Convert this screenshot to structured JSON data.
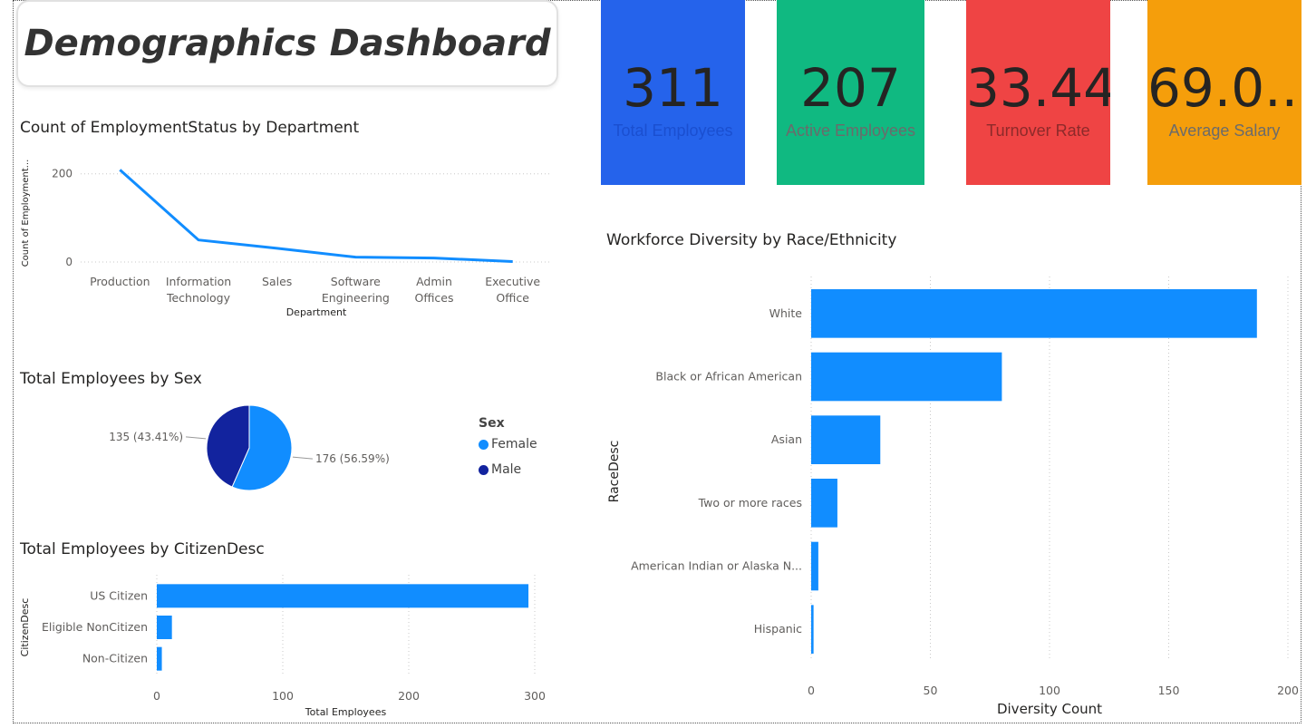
{
  "dashboard_title": "Demographics Dashboard",
  "kpis": [
    {
      "value": "311",
      "label": "Total Employees",
      "color": "#2563eb"
    },
    {
      "value": "207",
      "label": "Active Employees",
      "color": "#10b981"
    },
    {
      "value": "33.44",
      "label": "Turnover Rate",
      "color": "#ef4444"
    },
    {
      "value": "69.0...",
      "label": "Average Salary",
      "color": "#f59e0b"
    }
  ],
  "colors": {
    "series": "#118dff",
    "male": "#12239e",
    "grid": "#c8c8c8"
  },
  "chart_data": [
    {
      "type": "line",
      "title": "Count of EmploymentStatus by Department",
      "xlabel": "Department",
      "ylabel": "Count of Employment...",
      "categories": [
        "Production",
        "Information Technology",
        "Sales",
        "Software Engineering",
        "Admin Offices",
        "Executive Office"
      ],
      "category_lines": [
        [
          "Production"
        ],
        [
          "Information",
          "Technology"
        ],
        [
          "Sales"
        ],
        [
          "Software",
          "Engineering"
        ],
        [
          "Admin",
          "Offices"
        ],
        [
          "Executive",
          "Office"
        ]
      ],
      "values": [
        209,
        50,
        31,
        11,
        9,
        1
      ],
      "yticks": [
        0,
        200
      ],
      "ylim": [
        0,
        220
      ],
      "grid": true
    },
    {
      "type": "pie",
      "title": "Total Employees by Sex",
      "legend_title": "Sex",
      "legend_position": "right",
      "slices": [
        {
          "name": "Female",
          "value": 176,
          "label": "176 (56.59%)",
          "color": "#118dff"
        },
        {
          "name": "Male",
          "value": 135,
          "label": "135 (43.41%)",
          "color": "#12239e"
        }
      ]
    },
    {
      "type": "bar",
      "orientation": "horizontal",
      "title": "Total Employees by CitizenDesc",
      "xlabel": "Total Employees",
      "ylabel": "CitizenDesc",
      "categories": [
        "US Citizen",
        "Eligible NonCitizen",
        "Non-Citizen"
      ],
      "values": [
        295,
        12,
        4
      ],
      "xticks": [
        0,
        100,
        200,
        300
      ],
      "xlim": [
        0,
        300
      ],
      "grid": true
    },
    {
      "type": "bar",
      "orientation": "horizontal",
      "title": "Workforce Diversity by Race/Ethnicity",
      "xlabel": "Diversity Count",
      "ylabel": "RaceDesc",
      "categories": [
        "White",
        "Black or African American",
        "Asian",
        "Two or more races",
        "American Indian or Alaska N...",
        "Hispanic"
      ],
      "values": [
        187,
        80,
        29,
        11,
        3,
        1
      ],
      "xticks": [
        0,
        50,
        100,
        150,
        200
      ],
      "xlim": [
        0,
        200
      ],
      "grid": true
    }
  ]
}
